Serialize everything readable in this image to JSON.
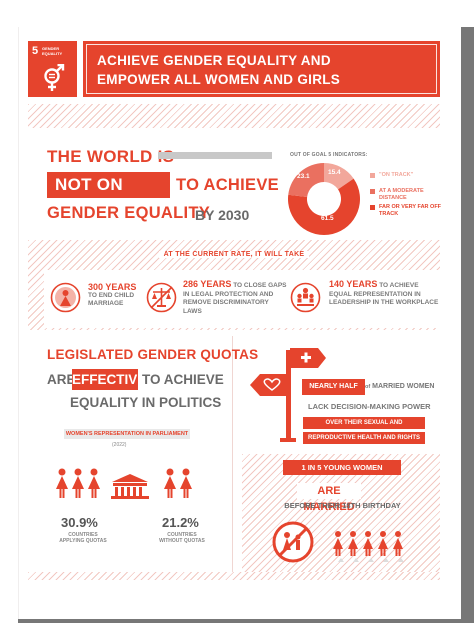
{
  "colors": {
    "accent": "#e5442d",
    "accent_light": "#f2a79b",
    "accent_mid": "#ea7060",
    "gray_text": "#6a6a6a"
  },
  "badge": {
    "number": "5",
    "label": "GENDER EQUALITY",
    "icon": "gender-equality-icon"
  },
  "header": {
    "title_line1": "ACHIEVE GENDER EQUALITY AND",
    "title_line2": "EMPOWER ALL WOMEN AND GIRLS"
  },
  "world": {
    "line1": "THE WORLD IS",
    "highlight": "NOT ON TRACK",
    "line2_rest": "TO ACHIEVE",
    "line3": "GENDER EQUALITY",
    "year": "BY 2030"
  },
  "indicators": {
    "title": "OUT OF GOAL 5 INDICATORS:",
    "chart_data": {
      "type": "pie",
      "categories": [
        "\"ON TRACK\"",
        "AT A MODERATE DISTANCE",
        "FAR OR VERY FAR OFF TRACK"
      ],
      "values": [
        15.4,
        23.1,
        61.5
      ],
      "labels": [
        "15.4",
        "23.1",
        "61.5"
      ],
      "colors": [
        "#f2a79b",
        "#ea7060",
        "#e5442d"
      ],
      "legend_position": "right"
    },
    "legend": [
      {
        "label": "\"ON TRACK\"",
        "color": "#f2a79b"
      },
      {
        "label": "AT A MODERATE DISTANCE",
        "color": "#ea7060"
      },
      {
        "label": "FAR OR VERY FAR OFF TRACK",
        "color": "#e5442d"
      }
    ]
  },
  "rate": {
    "title": "AT THE CURRENT RATE, IT WILL TAKE",
    "stats": [
      {
        "strong": "300 YEARS",
        "rest1": "TO END CHILD",
        "rest2": "MARRIAGE",
        "icon": "ring-icon"
      },
      {
        "strong": "286 YEARS",
        "rest1a": "TO CLOSE GAPS",
        "rest1": "IN LEGAL PROTECTION AND",
        "rest2": "REMOVE DISCRIMINATORY LAWS",
        "icon": "scales-icon"
      },
      {
        "strong": "140 YEARS",
        "rest1a": "TO ACHIEVE",
        "rest1": "EQUAL REPRESENTATION IN",
        "rest2": "LEADERSHIP IN THE WORKPLACE",
        "icon": "leadership-icon"
      }
    ]
  },
  "quotas": {
    "line1": "LEGISLATED GENDER QUOTAS",
    "line2_pre": "ARE",
    "line2_highlight": "EFFECTIVE",
    "line2_post": "TO ACHIEVE",
    "line3": "EQUALITY IN POLITICS",
    "wrp_label": "WOMEN'S REPRESENTATION IN PARLIAMENT",
    "wrp_year": "(2022)",
    "left_pct": "30.9%",
    "left_sub1": "COUNTRIES",
    "left_sub2": "APPLYING QUOTAS",
    "right_pct": "21.2%",
    "right_sub1": "COUNTRIES",
    "right_sub2": "WITHOUT QUOTAS"
  },
  "decisions": {
    "highlight": "NEARLY HALF",
    "of": "of",
    "rest": "MARRIED WOMEN",
    "line2": "LACK DECISION-MAKING POWER",
    "line3": "OVER THEIR SEXUAL AND",
    "line4": "REPRODUCTIVE HEALTH AND RIGHTS"
  },
  "young": {
    "line1": "1 IN 5 YOUNG WOMEN",
    "line2": "ARE MARRIED",
    "line3": "BEFORE THEIR 18TH BIRTHDAY"
  }
}
